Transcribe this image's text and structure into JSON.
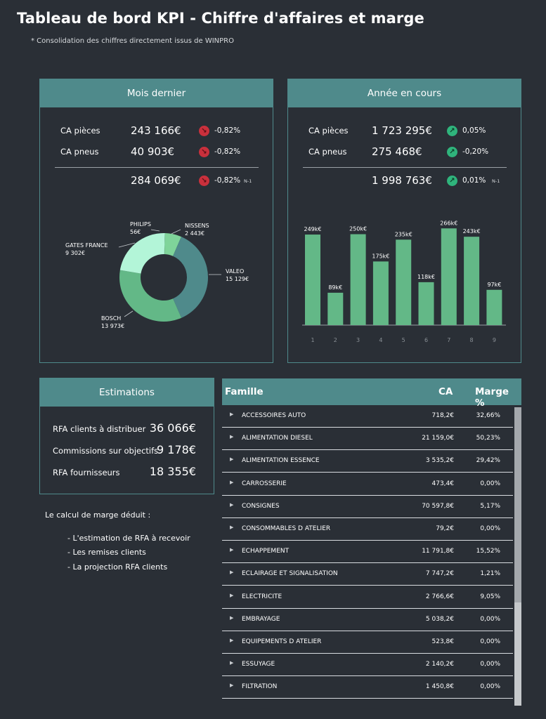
{
  "header": {
    "title": "Tableau de bord KPI - Chiffre d'affaires et marge",
    "subtitle": "* Consolidation des chiffres directement issus de WINPRO"
  },
  "mois_dernier": {
    "title": "Mois dernier",
    "rows": [
      {
        "label": "CA pièces",
        "value": "243 166€",
        "pct": "-0,82%",
        "trend": "down"
      },
      {
        "label": "CA pneus",
        "value": "40 903€",
        "pct": "-0,82%",
        "trend": "down"
      }
    ],
    "total": {
      "value": "284 069€",
      "pct": "-0,82%",
      "trend": "down",
      "suffix": "N-1"
    },
    "donut": {
      "slices": [
        {
          "name": "VALEO",
          "value_label": "15 129€",
          "value": 15129,
          "color": "#4f8a8b"
        },
        {
          "name": "BOSCH",
          "value_label": "13 973€",
          "value": 13973,
          "color": "#63b887"
        },
        {
          "name": "GATES FRANCE",
          "value_label": "9 302€",
          "value": 9302,
          "color": "#b3f5d8"
        },
        {
          "name": "PHILIPS",
          "value_label": "56€",
          "value": 56,
          "color": "#7fd8a8"
        },
        {
          "name": "NISSENS",
          "value_label": "2 443€",
          "value": 2443,
          "color": "#7fd49a"
        }
      ]
    }
  },
  "annee_en_cours": {
    "title": "Année en cours",
    "rows": [
      {
        "label": "CA pièces",
        "value": "1 723 295€",
        "pct": "0,05%",
        "trend": "up"
      },
      {
        "label": "CA pneus",
        "value": "275 468€",
        "pct": "-0,20%",
        "trend": "up"
      }
    ],
    "total": {
      "value": "1 998 763€",
      "pct": "0,01%",
      "trend": "up",
      "suffix": "N-1"
    }
  },
  "chart_data": {
    "type": "bar",
    "categories": [
      "1",
      "2",
      "3",
      "4",
      "5",
      "6",
      "7",
      "8",
      "9"
    ],
    "values": [
      249,
      89,
      250,
      175,
      235,
      118,
      266,
      243,
      97
    ],
    "data_labels": [
      "249k€",
      "89k€",
      "250k€",
      "175k€",
      "235k€",
      "118k€",
      "266k€",
      "243k€",
      "97k€"
    ],
    "title": "",
    "xlabel": "",
    "ylabel": "",
    "ylim": [
      0,
      280
    ],
    "grid": false,
    "color": "#63b887"
  },
  "estimations": {
    "title": "Estimations",
    "rows": [
      {
        "label": "RFA clients à distribuer",
        "value": "36 066€"
      },
      {
        "label": "Commissions sur objectifs",
        "value": "9 178€"
      },
      {
        "label": "RFA fournisseurs",
        "value": "18 355€"
      }
    ]
  },
  "notes": {
    "title": "Le calcul de marge déduit :",
    "items": [
      "- L'estimation de RFA à recevoir",
      "- Les remises clients",
      "- La projection RFA clients"
    ]
  },
  "table": {
    "headers": {
      "famille": "Famille",
      "ca": "CA",
      "marge": "Marge %"
    },
    "rows": [
      {
        "famille": "ACCESSOIRES AUTO",
        "ca": "718,2€",
        "marge": "32,66%"
      },
      {
        "famille": "ALIMENTATION DIESEL",
        "ca": "21 159,0€",
        "marge": "50,23%"
      },
      {
        "famille": "ALIMENTATION ESSENCE",
        "ca": "3 535,2€",
        "marge": "29,42%"
      },
      {
        "famille": "CARROSSERIE",
        "ca": "473,4€",
        "marge": "0,00%"
      },
      {
        "famille": "CONSIGNES",
        "ca": "70 597,8€",
        "marge": "5,17%"
      },
      {
        "famille": "CONSOMMABLES D ATELIER",
        "ca": "79,2€",
        "marge": "0,00%"
      },
      {
        "famille": "ECHAPPEMENT",
        "ca": "11 791,8€",
        "marge": "15,52%"
      },
      {
        "famille": "ECLAIRAGE ET SIGNALISATION",
        "ca": "7 747,2€",
        "marge": "1,21%"
      },
      {
        "famille": "ELECTRICITE",
        "ca": "2 766,6€",
        "marge": "9,05%"
      },
      {
        "famille": "EMBRAYAGE",
        "ca": "5 038,2€",
        "marge": "0,00%"
      },
      {
        "famille": "EQUIPEMENTS D ATELIER",
        "ca": "523,8€",
        "marge": "0,00%"
      },
      {
        "famille": "ESSUYAGE",
        "ca": "2 140,2€",
        "marge": "0,00%"
      },
      {
        "famille": "FILTRATION",
        "ca": "1 450,8€",
        "marge": "0,00%"
      }
    ]
  },
  "icons": {
    "down": "arrow-down-right-icon",
    "up": "arrow-up-right-icon"
  }
}
